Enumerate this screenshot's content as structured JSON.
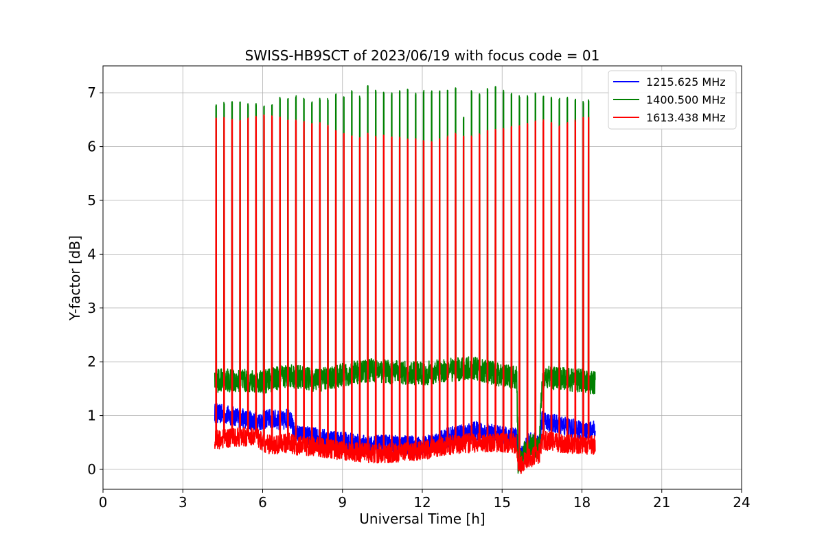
{
  "chart_data": {
    "type": "line",
    "title": "SWISS-HB9SCT of 2023/06/19 with focus code = 01",
    "xlabel": "Universal Time [h]",
    "ylabel": "Y-factor [dB]",
    "xlim": [
      0,
      24
    ],
    "ylim": [
      -0.37,
      7.5
    ],
    "xticks": [
      0,
      3,
      6,
      9,
      12,
      15,
      18,
      21,
      24
    ],
    "yticks": [
      0,
      1,
      2,
      3,
      4,
      5,
      6,
      7
    ],
    "grid": true,
    "legend_position": "top-right",
    "time_range": [
      4.2,
      18.5
    ],
    "calibration_pulse_times": [
      4.25,
      4.55,
      4.85,
      5.15,
      5.45,
      5.75,
      6.05,
      6.35,
      6.65,
      6.95,
      7.25,
      7.55,
      7.85,
      8.15,
      8.45,
      8.75,
      9.05,
      9.35,
      9.65,
      9.95,
      10.25,
      10.55,
      10.85,
      11.15,
      11.45,
      11.75,
      12.05,
      12.35,
      12.65,
      12.95,
      13.25,
      13.55,
      13.85,
      14.15,
      14.45,
      14.75,
      15.05,
      15.35,
      15.65,
      15.95,
      16.25,
      16.55,
      16.85,
      17.15,
      17.45,
      17.75,
      18.05,
      18.25
    ],
    "series": [
      {
        "name": "1215.625 MHz",
        "color": "#0000ff",
        "x": [
          4.2,
          5.0,
          5.8,
          6.2,
          6.8,
          7.0,
          7.2,
          8.0,
          9.0,
          10.0,
          11.0,
          12.0,
          13.0,
          14.0,
          15.0,
          15.55,
          15.6,
          16.0,
          16.4,
          16.5,
          17.0,
          18.0,
          18.5
        ],
        "values": [
          1.05,
          0.98,
          0.88,
          0.95,
          0.9,
          1.0,
          0.65,
          0.6,
          0.52,
          0.45,
          0.47,
          0.43,
          0.6,
          0.72,
          0.62,
          0.6,
          0.15,
          0.5,
          0.5,
          0.9,
          0.85,
          0.72,
          0.72
        ],
        "noise": 0.18,
        "pulse_peaks": []
      },
      {
        "name": "1400.500 MHz",
        "color": "#008000",
        "x": [
          4.2,
          5.0,
          6.0,
          7.0,
          8.0,
          9.0,
          10.0,
          11.0,
          12.0,
          13.0,
          14.0,
          15.0,
          15.55,
          15.6,
          16.0,
          16.4,
          16.5,
          17.0,
          18.0,
          18.5
        ],
        "values": [
          1.65,
          1.65,
          1.62,
          1.75,
          1.65,
          1.75,
          1.85,
          1.8,
          1.78,
          1.85,
          1.88,
          1.75,
          1.7,
          0.1,
          0.45,
          0.4,
          1.7,
          1.7,
          1.65,
          1.6
        ],
        "noise": 0.22,
        "pulse_peaks": [
          6.78,
          6.82,
          6.85,
          6.85,
          6.8,
          6.8,
          6.78,
          6.8,
          6.92,
          6.9,
          6.95,
          6.9,
          6.85,
          6.9,
          6.9,
          7.0,
          6.95,
          7.05,
          6.95,
          7.15,
          7.05,
          7.02,
          7.0,
          7.05,
          7.1,
          7.0,
          7.05,
          7.05,
          7.05,
          7.05,
          7.1,
          6.55,
          7.05,
          7.0,
          7.1,
          7.12,
          7.05,
          7.0,
          6.95,
          6.95,
          7.0,
          6.95,
          6.92,
          6.9,
          6.92,
          6.9,
          6.85,
          6.88
        ]
      },
      {
        "name": "1613.438 MHz",
        "color": "#ff0000",
        "x": [
          4.2,
          5.0,
          5.8,
          6.0,
          6.5,
          7.0,
          7.2,
          8.0,
          9.0,
          10.0,
          11.0,
          12.0,
          13.0,
          14.0,
          15.0,
          15.55,
          15.6,
          16.0,
          16.4,
          16.5,
          17.0,
          18.0,
          18.5
        ],
        "values": [
          0.55,
          0.6,
          0.62,
          0.48,
          0.45,
          0.5,
          0.45,
          0.42,
          0.35,
          0.3,
          0.3,
          0.35,
          0.45,
          0.5,
          0.5,
          0.48,
          0.05,
          0.2,
          0.3,
          0.55,
          0.5,
          0.45,
          0.45
        ],
        "noise": 0.18,
        "pulse_peaks": [
          6.55,
          6.55,
          6.52,
          6.5,
          6.55,
          6.58,
          6.6,
          6.58,
          6.55,
          6.5,
          6.5,
          6.48,
          6.45,
          6.45,
          6.4,
          6.3,
          6.25,
          6.2,
          6.2,
          6.25,
          6.2,
          6.22,
          6.2,
          6.18,
          6.15,
          6.15,
          6.12,
          6.1,
          6.15,
          6.2,
          6.25,
          6.2,
          6.2,
          6.25,
          6.3,
          6.35,
          6.35,
          6.38,
          6.4,
          6.45,
          6.48,
          6.5,
          6.45,
          6.4,
          6.45,
          6.5,
          6.55,
          6.55
        ]
      }
    ]
  }
}
